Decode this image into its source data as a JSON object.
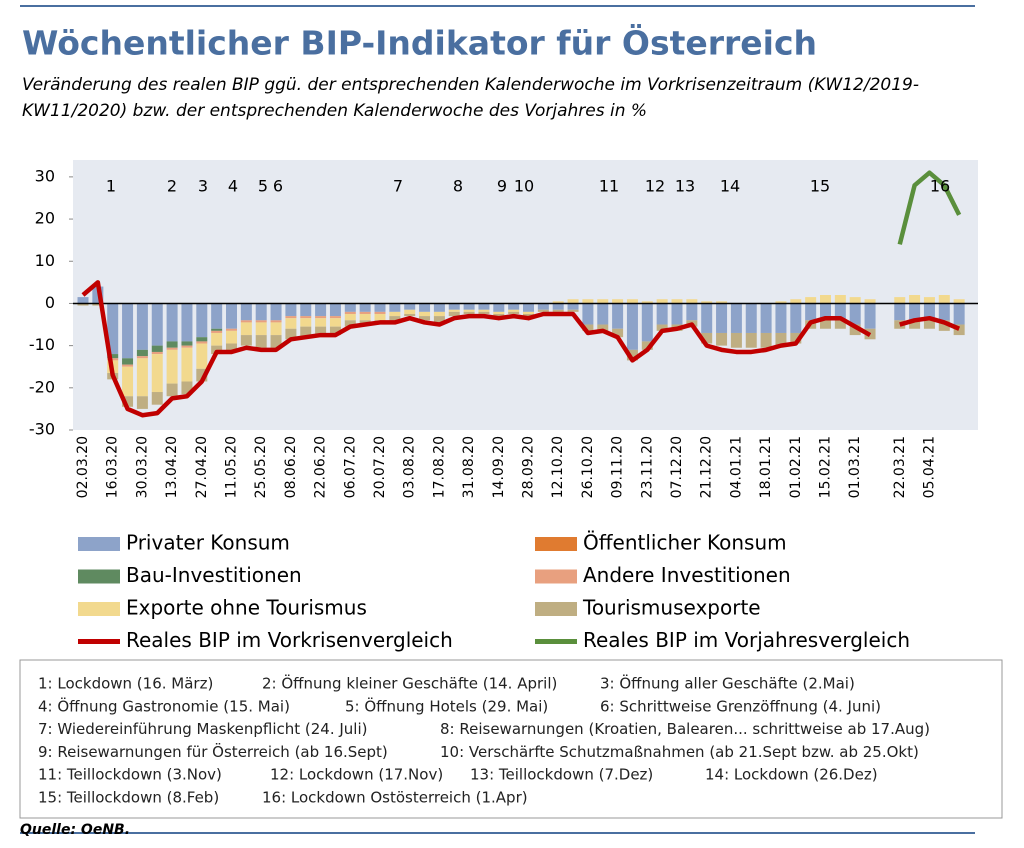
{
  "chart_data": {
    "type": "bar",
    "title": "Wöchentlicher BIP-Indikator für Österreich",
    "subtitle": [
      "Veränderung des realen BIP ggü. der entsprechenden Kalenderwoche im Vorkrisenzeitraum (KW12/2019-",
      "KW11/2020) bzw. der entsprechenden Kalenderwoche des Vorjahres in %"
    ],
    "categories": [
      "02.03.20",
      null,
      "16.03.20",
      null,
      "30.03.20",
      null,
      "13.04.20",
      null,
      "27.04.20",
      null,
      "11.05.20",
      null,
      "25.05.20",
      null,
      "08.06.20",
      null,
      "22.06.20",
      null,
      "06.07.20",
      null,
      "20.07.20",
      null,
      "03.08.20",
      null,
      "17.08.20",
      null,
      "31.08.20",
      null,
      "14.09.20",
      null,
      "28.09.20",
      null,
      "12.10.20",
      null,
      "26.10.20",
      null,
      "09.11.20",
      null,
      "23.11.20",
      null,
      "07.12.20",
      null,
      "21.12.20",
      null,
      "04.01.21",
      null,
      "18.01.21",
      null,
      "01.02.21",
      null,
      "15.02.21",
      null,
      "01.03.21",
      null,
      null,
      "22.03.21",
      null,
      "05.04.21",
      null,
      null
    ],
    "series": [
      {
        "name": "Privater Konsum",
        "color": "#8da3c9",
        "values": [
          1.5,
          4,
          -12,
          -13,
          -11,
          -10,
          -9,
          -9,
          -8,
          -6,
          -6,
          -4,
          -4,
          -4,
          -3,
          -3,
          -3,
          -3,
          -2,
          -2,
          -2,
          -2,
          -1.5,
          -2,
          -2,
          -1.5,
          -1.5,
          -1.5,
          -2,
          -1.5,
          -2,
          -1.5,
          -1.5,
          -1.5,
          -5,
          -5,
          -6,
          -11,
          -9,
          -5,
          -5,
          -4,
          -7,
          -7,
          -7,
          -7,
          -7,
          -7,
          -7,
          -4,
          -4,
          -4,
          -5,
          -6,
          null,
          -4,
          -4,
          -4,
          -4,
          -5
        ]
      },
      {
        "name": "Öffentlicher Konsum",
        "color": "#e07b30",
        "values": [
          0,
          0,
          0,
          0,
          0,
          0,
          0,
          0,
          0,
          0,
          0,
          0,
          0,
          0,
          0,
          0,
          0,
          0,
          0,
          0,
          0,
          0,
          0,
          0,
          0,
          0,
          0,
          0,
          0,
          0,
          0,
          0,
          0,
          0,
          0,
          0,
          0,
          0,
          0,
          0,
          0,
          0,
          0,
          0,
          0,
          0,
          0,
          0,
          0,
          0,
          0,
          0,
          0,
          0,
          null,
          0,
          0,
          0,
          0,
          0
        ]
      },
      {
        "name": "Bau-Investitionen",
        "color": "#5f8a60",
        "values": [
          0,
          0,
          -1,
          -1.5,
          -1.5,
          -1.5,
          -1.5,
          -1,
          -1,
          -0.5,
          0,
          0,
          0,
          0,
          0,
          0,
          0,
          0,
          0,
          0,
          0,
          0,
          0,
          0,
          0,
          0,
          0,
          0,
          0,
          0,
          0,
          0,
          0,
          0,
          0,
          0,
          0,
          0,
          0,
          0,
          0,
          0,
          0,
          0,
          0,
          0,
          0,
          0,
          0,
          0,
          0,
          0,
          0,
          0,
          null,
          0,
          0,
          0,
          0,
          0
        ]
      },
      {
        "name": "Andere Investitionen",
        "color": "#e8a07f",
        "values": [
          0,
          0,
          -0.5,
          -0.5,
          -0.5,
          -0.5,
          -0.5,
          -0.5,
          -0.5,
          -0.5,
          -0.5,
          -0.5,
          -0.5,
          -0.5,
          -0.5,
          -0.5,
          -0.5,
          -0.5,
          -0.5,
          -0.5,
          -0.5,
          0,
          0,
          0,
          0,
          0,
          0,
          0,
          0,
          0,
          0,
          0,
          0,
          0,
          0,
          0,
          0,
          0,
          0,
          0,
          0,
          0,
          0,
          0,
          0,
          0,
          0,
          0,
          0,
          0,
          0,
          0,
          0,
          0,
          null,
          0,
          0,
          0,
          0,
          0
        ]
      },
      {
        "name": "Exporte ohne Tourismus",
        "color": "#f2d98e",
        "values": [
          0,
          0,
          -3,
          -7,
          -9,
          -9,
          -8,
          -8,
          -6,
          -3,
          -3,
          -3,
          -3,
          -3,
          -2.5,
          -2,
          -2,
          -2,
          -1.5,
          -1.5,
          -1.5,
          -1,
          -1,
          -1,
          -1,
          -0.5,
          -0.5,
          -0.5,
          -0.5,
          -0.5,
          -0.5,
          0,
          0.5,
          1,
          1,
          1,
          1,
          1,
          0.5,
          1,
          1,
          1,
          0.5,
          0.5,
          0,
          0,
          0,
          0.5,
          1,
          1.5,
          2,
          2,
          1.5,
          1,
          null,
          1.5,
          2,
          1.5,
          2,
          1
        ]
      },
      {
        "name": "Tourismusexporte",
        "color": "#bfae82",
        "values": [
          -0.5,
          -0.5,
          -1.5,
          -2.5,
          -3,
          -3,
          -3,
          -3,
          -3,
          -2,
          -2,
          -2.5,
          -3,
          -3,
          -2.5,
          -2.5,
          -2,
          -2,
          -1.5,
          -1,
          -1,
          -1,
          -0.5,
          -1,
          -1.5,
          -1,
          -0.5,
          -0.5,
          -0.5,
          -0.5,
          -0.5,
          -0.5,
          -0.5,
          -0.5,
          -1.5,
          -1.5,
          -2,
          -2.5,
          -2,
          -1.5,
          -1.5,
          -1.5,
          -2.5,
          -3,
          -3.5,
          -3.5,
          -3.5,
          -3,
          -2.5,
          -2,
          -2,
          -2,
          -2.5,
          -2.5,
          null,
          -2,
          -2,
          -2,
          -2.5,
          -2.5
        ]
      }
    ],
    "lines": [
      {
        "name": "Reales BIP im Vorkrisenvergleich",
        "color": "#c00000",
        "values": [
          2,
          5,
          -17,
          -25,
          -26.5,
          -26,
          -22.5,
          -22,
          -18.5,
          -11.5,
          -11.5,
          -10.5,
          -11,
          -11,
          -8.5,
          -8,
          -7.5,
          -7.5,
          -5.5,
          -5,
          -4.5,
          -4.5,
          -3.5,
          -4.5,
          -5,
          -3.5,
          -3,
          -3,
          -3.5,
          -3,
          -3.5,
          -2.5,
          -2.5,
          -2.5,
          -7,
          -6.5,
          -8,
          -13.5,
          -11,
          -6.5,
          -6,
          -5,
          -10,
          -11,
          -11.5,
          -11.5,
          -11,
          -10,
          -9.5,
          -4.5,
          -3.5,
          -3.5,
          -5.5,
          -7.5,
          null,
          -5,
          -4,
          -3.5,
          -4.5,
          -6
        ]
      },
      {
        "name": "Reales BIP im Vorjahresvergleich",
        "color": "#5a8f3c",
        "values": [
          null,
          null,
          null,
          null,
          null,
          null,
          null,
          null,
          null,
          null,
          null,
          null,
          null,
          null,
          null,
          null,
          null,
          null,
          null,
          null,
          null,
          null,
          null,
          null,
          null,
          null,
          null,
          null,
          null,
          null,
          null,
          null,
          null,
          null,
          null,
          null,
          null,
          null,
          null,
          null,
          null,
          null,
          null,
          null,
          null,
          null,
          null,
          null,
          null,
          null,
          null,
          null,
          null,
          null,
          null,
          14,
          28,
          31,
          28,
          21
        ]
      }
    ],
    "ylim": [
      -30,
      34
    ],
    "yticks": [
      -30,
      -20,
      -10,
      0,
      10,
      20,
      30
    ],
    "grid": false,
    "annotations": [
      "1",
      "2",
      "3",
      "4",
      "5",
      "6",
      "7",
      "8",
      "9",
      "10",
      "11",
      "12",
      "13",
      "14",
      "15",
      "16"
    ],
    "notes": [
      [
        "1:  Lockdown (16. März)",
        "2:  Öffnung kleiner Geschäfte (14. April)",
        "3:  Öffnung aller Geschäfte (2.Mai)"
      ],
      [
        "4:  Öffnung Gastronomie (15. Mai)",
        "5:  Öffnung Hotels (29. Mai)",
        "6:  Schrittweise Grenzöffnung (4. Juni)"
      ],
      [
        "7:  Wiedereinführung Maskenpflicht (24. Juli)",
        "8:  Reisewarnungen (Kroatien, Balearen... schrittweise ab 17.Aug)"
      ],
      [
        "9:  Reisewarnungen für Österreich (ab 16.Sept)",
        "10:  Verschärfte Schutzmaßnahmen (ab 21.Sept bzw. ab 25.Okt)"
      ],
      [
        "11: Teillockdown (3.Nov)",
        "12: Lockdown (17.Nov)",
        "13: Teillockdown (7.Dez)",
        "14: Lockdown (26.Dez)"
      ],
      [
        "15: Teillockdown (8.Feb)",
        "16: Lockdown Ostösterreich (1.Apr)"
      ]
    ],
    "source": "Quelle: OeNB."
  }
}
